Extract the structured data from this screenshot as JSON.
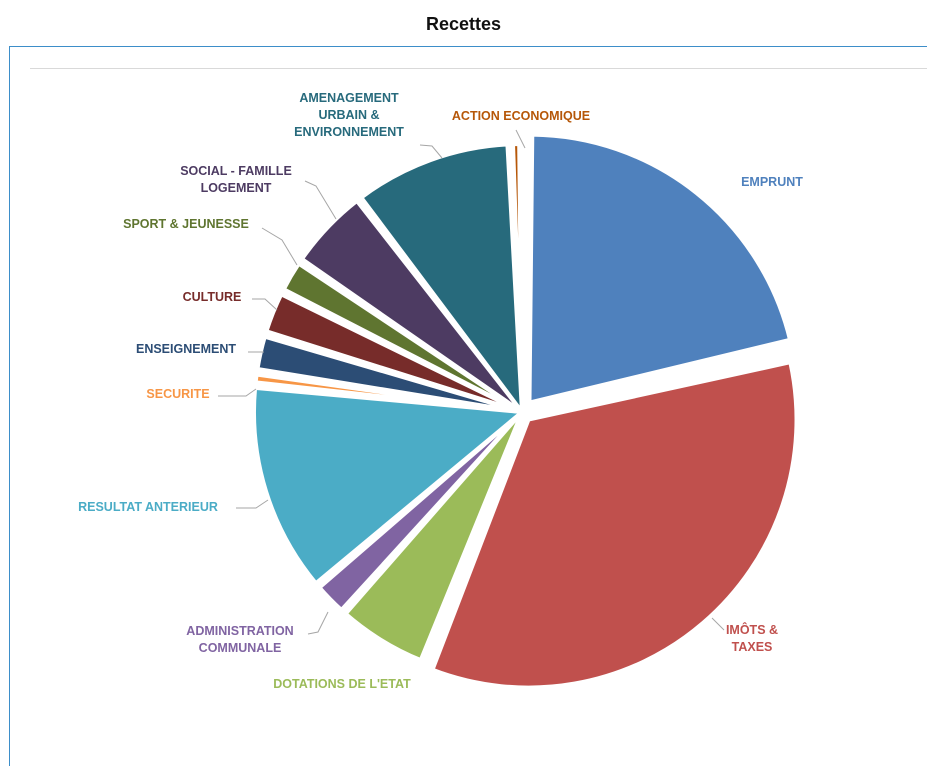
{
  "title": "Recettes",
  "chart_data": {
    "type": "pie",
    "title": "Recettes",
    "legend": "none",
    "slices": [
      {
        "label": "EMPRUNT",
        "value": 21.4,
        "color": "#4f81bd"
      },
      {
        "label": "IMÔTS & TAXES",
        "value": 34.6,
        "color": "#c0504d"
      },
      {
        "label": "DOTATIONS DE L'ETAT",
        "value": 5.6,
        "color": "#9bbb59"
      },
      {
        "label": "ADMINISTRATION COMMUNALE",
        "value": 2.2,
        "color": "#8064a2"
      },
      {
        "label": "RESULTAT ANTERIEUR",
        "value": 12.8,
        "color": "#4bacc6"
      },
      {
        "label": "SECURITE",
        "value": 0.8,
        "color": "#f79646"
      },
      {
        "label": "ENSEIGNEMENT",
        "value": 2.3,
        "color": "#2c4d75"
      },
      {
        "label": "CULTURE",
        "value": 2.7,
        "color": "#772c2a"
      },
      {
        "label": "SPORT & JEUNESSE",
        "value": 2.1,
        "color": "#5f7530"
      },
      {
        "label": "SOCIAL - FAMILLE LOGEMENT",
        "value": 5.1,
        "color": "#4d3b62"
      },
      {
        "label": "AMENAGEMENT URBAIN & ENVIRONNEMENT",
        "value": 9.7,
        "color": "#276a7c"
      },
      {
        "label": "ACTION ECONOMIQUE",
        "value": 0.7,
        "color": "#b65708"
      }
    ]
  }
}
